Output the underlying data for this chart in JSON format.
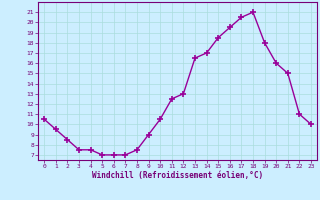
{
  "x": [
    0,
    1,
    2,
    3,
    4,
    5,
    6,
    7,
    8,
    9,
    10,
    11,
    12,
    13,
    14,
    15,
    16,
    17,
    18,
    19,
    20,
    21,
    22,
    23
  ],
  "y": [
    10.5,
    9.5,
    8.5,
    7.5,
    7.5,
    7.0,
    7.0,
    7.0,
    7.5,
    9.0,
    10.5,
    12.5,
    13.0,
    16.5,
    17.0,
    18.5,
    19.5,
    20.5,
    21.0,
    18.0,
    16.0,
    15.0,
    11.0,
    10.0
  ],
  "line_color": "#990099",
  "marker": "+",
  "marker_size": 4,
  "marker_lw": 1.2,
  "bg_color": "#cceeff",
  "grid_color": "#aadddd",
  "xlabel": "Windchill (Refroidissement éolien,°C)",
  "yticks": [
    7,
    8,
    9,
    10,
    11,
    12,
    13,
    14,
    15,
    16,
    17,
    18,
    19,
    20,
    21
  ],
  "xticks": [
    0,
    1,
    2,
    3,
    4,
    5,
    6,
    7,
    8,
    9,
    10,
    11,
    12,
    13,
    14,
    15,
    16,
    17,
    18,
    19,
    20,
    21,
    22,
    23
  ],
  "xlim": [
    -0.5,
    23.5
  ],
  "ylim": [
    6.5,
    22.0
  ],
  "tick_color": "#770077",
  "label_color": "#770077",
  "spine_color": "#770077",
  "line_width": 1.0,
  "tick_fontsize": 4.5,
  "xlabel_fontsize": 5.5
}
